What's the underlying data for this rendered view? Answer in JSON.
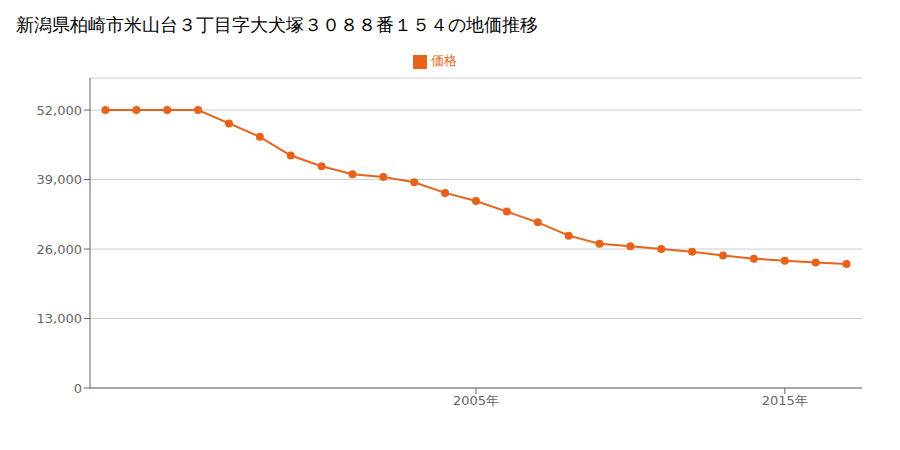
{
  "chart_data": {
    "type": "line",
    "title": "新潟県柏崎市米山台３丁目字大犬塚３０８８番１５４の地価推移",
    "x": [
      1993,
      1994,
      1995,
      1996,
      1997,
      1998,
      1999,
      2000,
      2001,
      2002,
      2003,
      2004,
      2005,
      2006,
      2007,
      2008,
      2009,
      2010,
      2011,
      2012,
      2013,
      2014,
      2015,
      2016,
      2017
    ],
    "series": [
      {
        "name": "価格",
        "color": "#E8621A",
        "marker": "circle",
        "values": [
          52000,
          52000,
          52000,
          52000,
          49500,
          47000,
          43500,
          41500,
          40000,
          39500,
          38500,
          36500,
          35000,
          33000,
          31000,
          28500,
          27000,
          26500,
          26000,
          25500,
          24800,
          24200,
          23800,
          23500,
          23200
        ]
      }
    ],
    "xlim": [
      1992.5,
      2017.5
    ],
    "xticks": [
      {
        "value": 2005,
        "label": "2005年"
      },
      {
        "value": 2015,
        "label": "2015年"
      }
    ],
    "ylim": [
      0,
      58000
    ],
    "yticks": [
      0,
      {
        "value": 13000,
        "label": "13,000"
      },
      {
        "value": 26000,
        "label": "26,000"
      },
      {
        "value": 39000,
        "label": "39,000"
      },
      {
        "value": 52000,
        "label": "52,000"
      }
    ],
    "grid": "y",
    "legend": "top"
  }
}
